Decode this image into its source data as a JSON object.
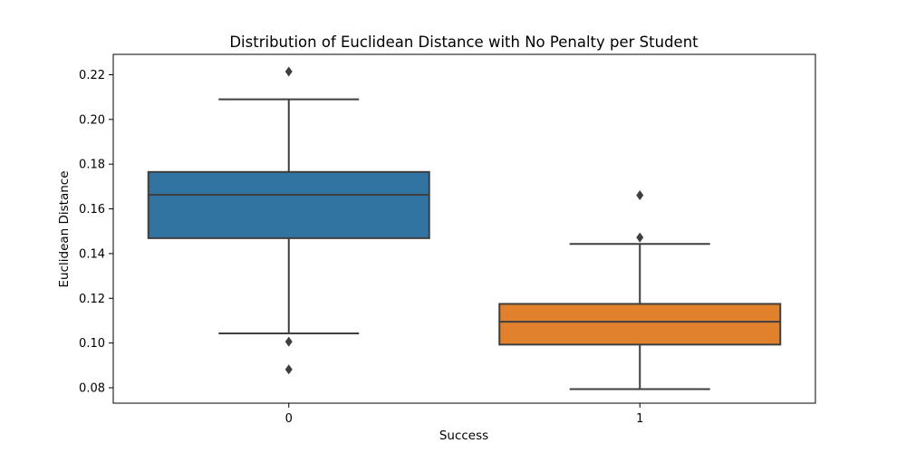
{
  "chart_data": {
    "type": "box",
    "title": "Distribution of Euclidean Distance with No Penalty per Student",
    "xlabel": "Success",
    "ylabel": "Euclidean Distance",
    "ylim": [
      0.0731,
      0.2291
    ],
    "yticks": [
      0.08,
      0.1,
      0.12,
      0.14,
      0.16,
      0.18,
      0.2,
      0.22
    ],
    "ytick_labels": [
      "0.08",
      "0.10",
      "0.12",
      "0.14",
      "0.16",
      "0.18",
      "0.20",
      "0.22"
    ],
    "categories": [
      "0",
      "1"
    ],
    "grid": false,
    "legend": "none",
    "boxes": [
      {
        "category": "0",
        "color": "#3274a1",
        "whisker_low": 0.1043,
        "q1": 0.1469,
        "median": 0.1663,
        "q3": 0.1765,
        "whisker_high": 0.209,
        "outliers": [
          0.2214,
          0.1006,
          0.0882
        ]
      },
      {
        "category": "1",
        "color": "#e1812c",
        "whisker_low": 0.0794,
        "q1": 0.0993,
        "median": 0.1095,
        "q3": 0.1175,
        "whisker_high": 0.1443,
        "outliers": [
          0.1661,
          0.1472
        ]
      }
    ],
    "line_color": "#3f3f3f",
    "frame_color": "#000000"
  }
}
